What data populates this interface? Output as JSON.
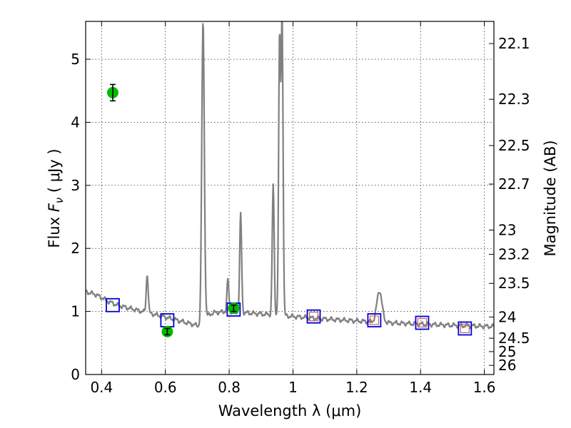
{
  "chart_data": {
    "type": "scatter",
    "xlabel": "Wavelength  λ (μm)",
    "ylabel": "Flux  F_ν  ( μJy )",
    "y2label": "Magnitude (AB)",
    "xlim": [
      0.35,
      1.63
    ],
    "ylim": [
      0,
      5.6
    ],
    "grid": true,
    "x_ticks": [
      {
        "value": 0.4,
        "label": "0.4"
      },
      {
        "value": 0.6,
        "label": "0.6"
      },
      {
        "value": 0.8,
        "label": "0.8"
      },
      {
        "value": 1.0,
        "label": "1"
      },
      {
        "value": 1.2,
        "label": "1.2"
      },
      {
        "value": 1.4,
        "label": "1.4"
      },
      {
        "value": 1.6,
        "label": "1.6"
      }
    ],
    "y_ticks": [
      {
        "value": 0,
        "label": "0"
      },
      {
        "value": 1,
        "label": "1"
      },
      {
        "value": 2,
        "label": "2"
      },
      {
        "value": 3,
        "label": "3"
      },
      {
        "value": 4,
        "label": "4"
      },
      {
        "value": 5,
        "label": "5"
      }
    ],
    "y2_ticks": [
      {
        "mag": 22.1,
        "label": "22.1"
      },
      {
        "mag": 22.3,
        "label": "22.3"
      },
      {
        "mag": 22.5,
        "label": "22.5"
      },
      {
        "mag": 22.7,
        "label": "22.7"
      },
      {
        "mag": 23,
        "label": "23"
      },
      {
        "mag": 23.2,
        "label": "23.2"
      },
      {
        "mag": 23.5,
        "label": "23.5"
      },
      {
        "mag": 24,
        "label": "24"
      },
      {
        "mag": 24.5,
        "label": "24.5"
      },
      {
        "mag": 25,
        "label": "25"
      },
      {
        "mag": 26,
        "label": "26"
      }
    ],
    "series": [
      {
        "kind": "sed_model",
        "color": "#808080",
        "continuum": [
          [
            0.35,
            1.31
          ],
          [
            0.36,
            1.3
          ],
          [
            0.38,
            1.27
          ],
          [
            0.4,
            1.22
          ],
          [
            0.42,
            1.16
          ],
          [
            0.45,
            1.1
          ],
          [
            0.48,
            1.06
          ],
          [
            0.52,
            1.01
          ],
          [
            0.56,
            0.96
          ],
          [
            0.6,
            0.91
          ],
          [
            0.63,
            0.87
          ],
          [
            0.66,
            0.83
          ],
          [
            0.69,
            0.79
          ],
          [
            0.712,
            0.76
          ],
          [
            0.72,
            0.9
          ],
          [
            0.75,
            0.98
          ],
          [
            0.8,
            1.0
          ],
          [
            0.85,
            0.98
          ],
          [
            0.9,
            0.96
          ],
          [
            0.95,
            0.94
          ],
          [
            1.0,
            0.92
          ],
          [
            1.1,
            0.88
          ],
          [
            1.2,
            0.85
          ],
          [
            1.3,
            0.82
          ],
          [
            1.4,
            0.8
          ],
          [
            1.5,
            0.78
          ],
          [
            1.63,
            0.76
          ]
        ],
        "emission_lines": [
          {
            "x": 0.543,
            "peak": 1.6,
            "width": 0.003
          },
          {
            "x": 0.718,
            "peak": 5.6,
            "width": 0.004
          },
          {
            "x": 0.796,
            "peak": 1.5,
            "width": 0.003
          },
          {
            "x": 0.836,
            "peak": 2.54,
            "width": 0.003
          },
          {
            "x": 0.938,
            "peak": 3.0,
            "width": 0.003
          },
          {
            "x": 0.958,
            "peak": 5.3,
            "width": 0.003
          },
          {
            "x": 0.966,
            "peak": 5.6,
            "width": 0.003
          },
          {
            "x": 1.271,
            "peak": 1.33,
            "width": 0.008
          }
        ]
      },
      {
        "kind": "observed_photometry",
        "color": "#00bb00",
        "points": [
          {
            "x": 0.435,
            "y": 4.47,
            "err": 0.13
          },
          {
            "x": 0.606,
            "y": 0.68,
            "err": 0.05
          },
          {
            "x": 0.814,
            "y": 1.05,
            "err": 0.05
          }
        ]
      },
      {
        "kind": "model_photometry",
        "color": "#0000dd",
        "points": [
          {
            "x": 0.435,
            "y": 1.1
          },
          {
            "x": 0.606,
            "y": 0.86
          },
          {
            "x": 0.814,
            "y": 1.03
          },
          {
            "x": 1.065,
            "y": 0.92
          },
          {
            "x": 1.255,
            "y": 0.86
          },
          {
            "x": 1.405,
            "y": 0.82
          },
          {
            "x": 1.539,
            "y": 0.73
          }
        ]
      },
      {
        "kind": "model_photometry_inner",
        "color": "#cc6666",
        "points": [
          {
            "x": 1.065,
            "y": 0.92
          },
          {
            "x": 1.255,
            "y": 0.86
          },
          {
            "x": 1.405,
            "y": 0.82
          },
          {
            "x": 1.539,
            "y": 0.73
          }
        ]
      }
    ]
  }
}
